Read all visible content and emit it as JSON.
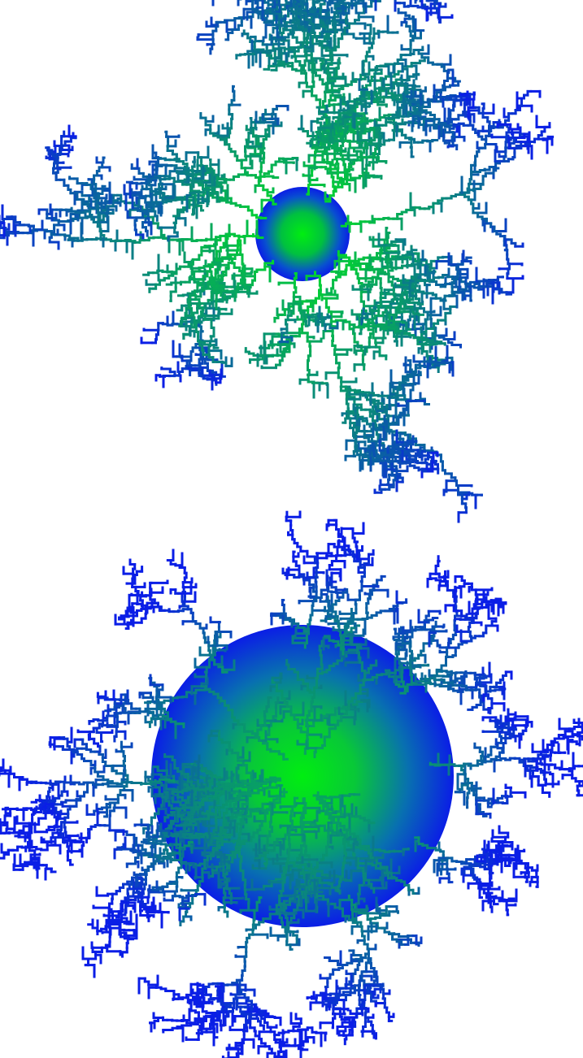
{
  "figures": [
    {
      "name": "upper-dendrite-cluster",
      "description_color_inner": "#00e61e",
      "description_color_outer": "#0a1ee6"
    },
    {
      "name": "lower-dendrite-cluster",
      "description_color_inner": "#00e61e",
      "description_color_outer": "#0a1ee6"
    }
  ],
  "colors": {
    "background": "#ffffff",
    "core_green": "#00e61e",
    "mid_teal": "#0a8a7a",
    "edge_blue": "#0a1ee6"
  }
}
